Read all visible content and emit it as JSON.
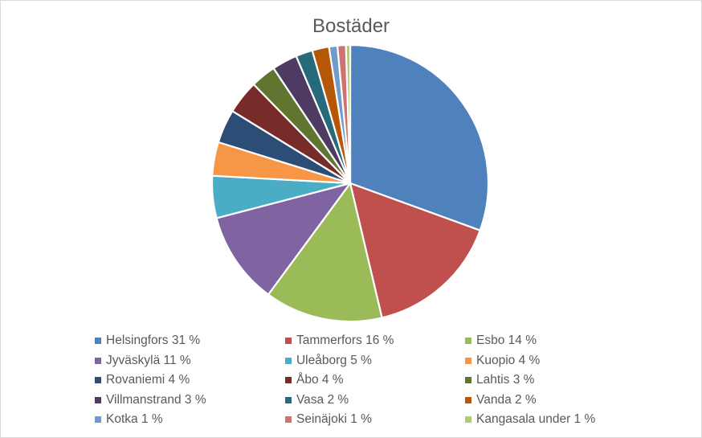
{
  "chart_data": {
    "type": "pie",
    "title": "Bostäder",
    "legend_position": "bottom",
    "categories": [
      "Helsingfors",
      "Tammerfors",
      "Esbo",
      "Jyväskylä",
      "Uleåborg",
      "Kuopio",
      "Rovaniemi",
      "Åbo",
      "Lahtis",
      "Villmanstrand",
      "Vasa",
      "Vanda",
      "Kotka",
      "Seinäjoki",
      "Kangasala"
    ],
    "values": [
      31,
      16,
      14,
      11,
      5,
      4,
      4,
      4,
      3,
      3,
      2,
      2,
      1,
      1,
      0.5
    ],
    "labels": [
      "Helsingfors 31 %",
      "Tammerfors 16 %",
      "Esbo 14 %",
      "Jyväskylä 11 %",
      "Uleåborg 5 %",
      "Kuopio 4 %",
      "Rovaniemi 4 %",
      "Åbo 4 %",
      "Lahtis 3 %",
      "Villmanstrand 3 %",
      "Vasa 2 %",
      "Vanda 2 %",
      "Kotka 1 %",
      "Seinäjoki 1 %",
      "Kangasala under 1 %"
    ],
    "colors": [
      "#4f81bd",
      "#c0504d",
      "#9bbb59",
      "#8064a2",
      "#4bacc6",
      "#f79646",
      "#2c4d75",
      "#772c2a",
      "#5f7530",
      "#4d3b62",
      "#276a7c",
      "#b65708",
      "#729aca",
      "#cd7371",
      "#afc97a"
    ]
  }
}
